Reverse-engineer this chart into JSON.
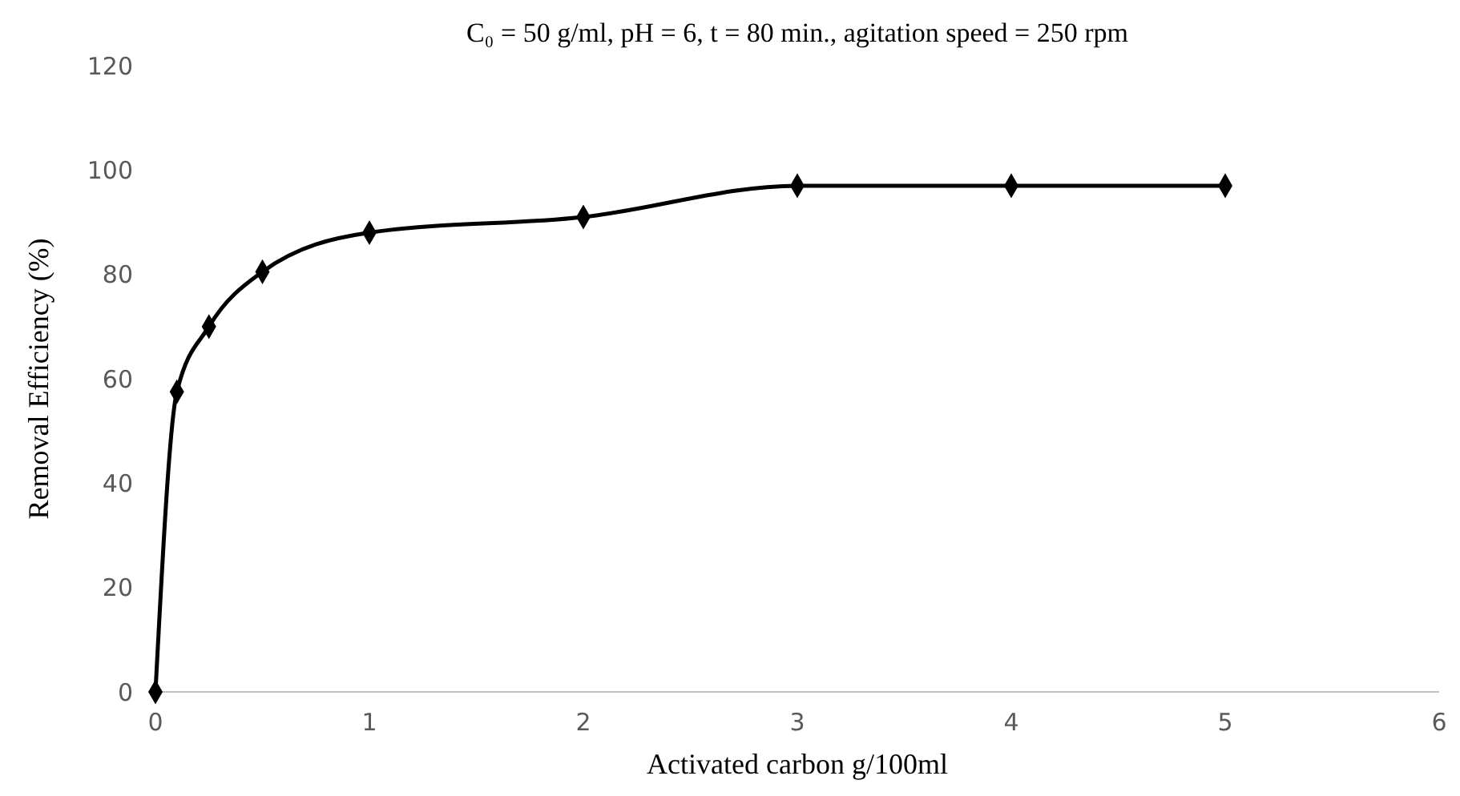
{
  "chart_data": {
    "type": "line",
    "title": "C₀ = 50 g/ml, pH = 6, t = 80 min., agitation speed = 250 rpm",
    "xlabel": "Activated carbon g/100ml",
    "ylabel": "Removal Efficiency (%)",
    "x": [
      0,
      0.1,
      0.25,
      0.5,
      1,
      2,
      3,
      4,
      5
    ],
    "series": [
      {
        "color": "#000000",
        "values": [
          0,
          57.5,
          70,
          80.5,
          88,
          91,
          97,
          97,
          97
        ]
      }
    ],
    "xlim": [
      0,
      6
    ],
    "xticks": [
      0,
      1,
      2,
      3,
      4,
      5,
      6
    ],
    "ylim": [
      0,
      120
    ],
    "yticks": [
      0,
      20,
      40,
      60,
      80,
      100,
      120
    ],
    "grid": false,
    "marker": "diamond",
    "line_style": "solid"
  }
}
